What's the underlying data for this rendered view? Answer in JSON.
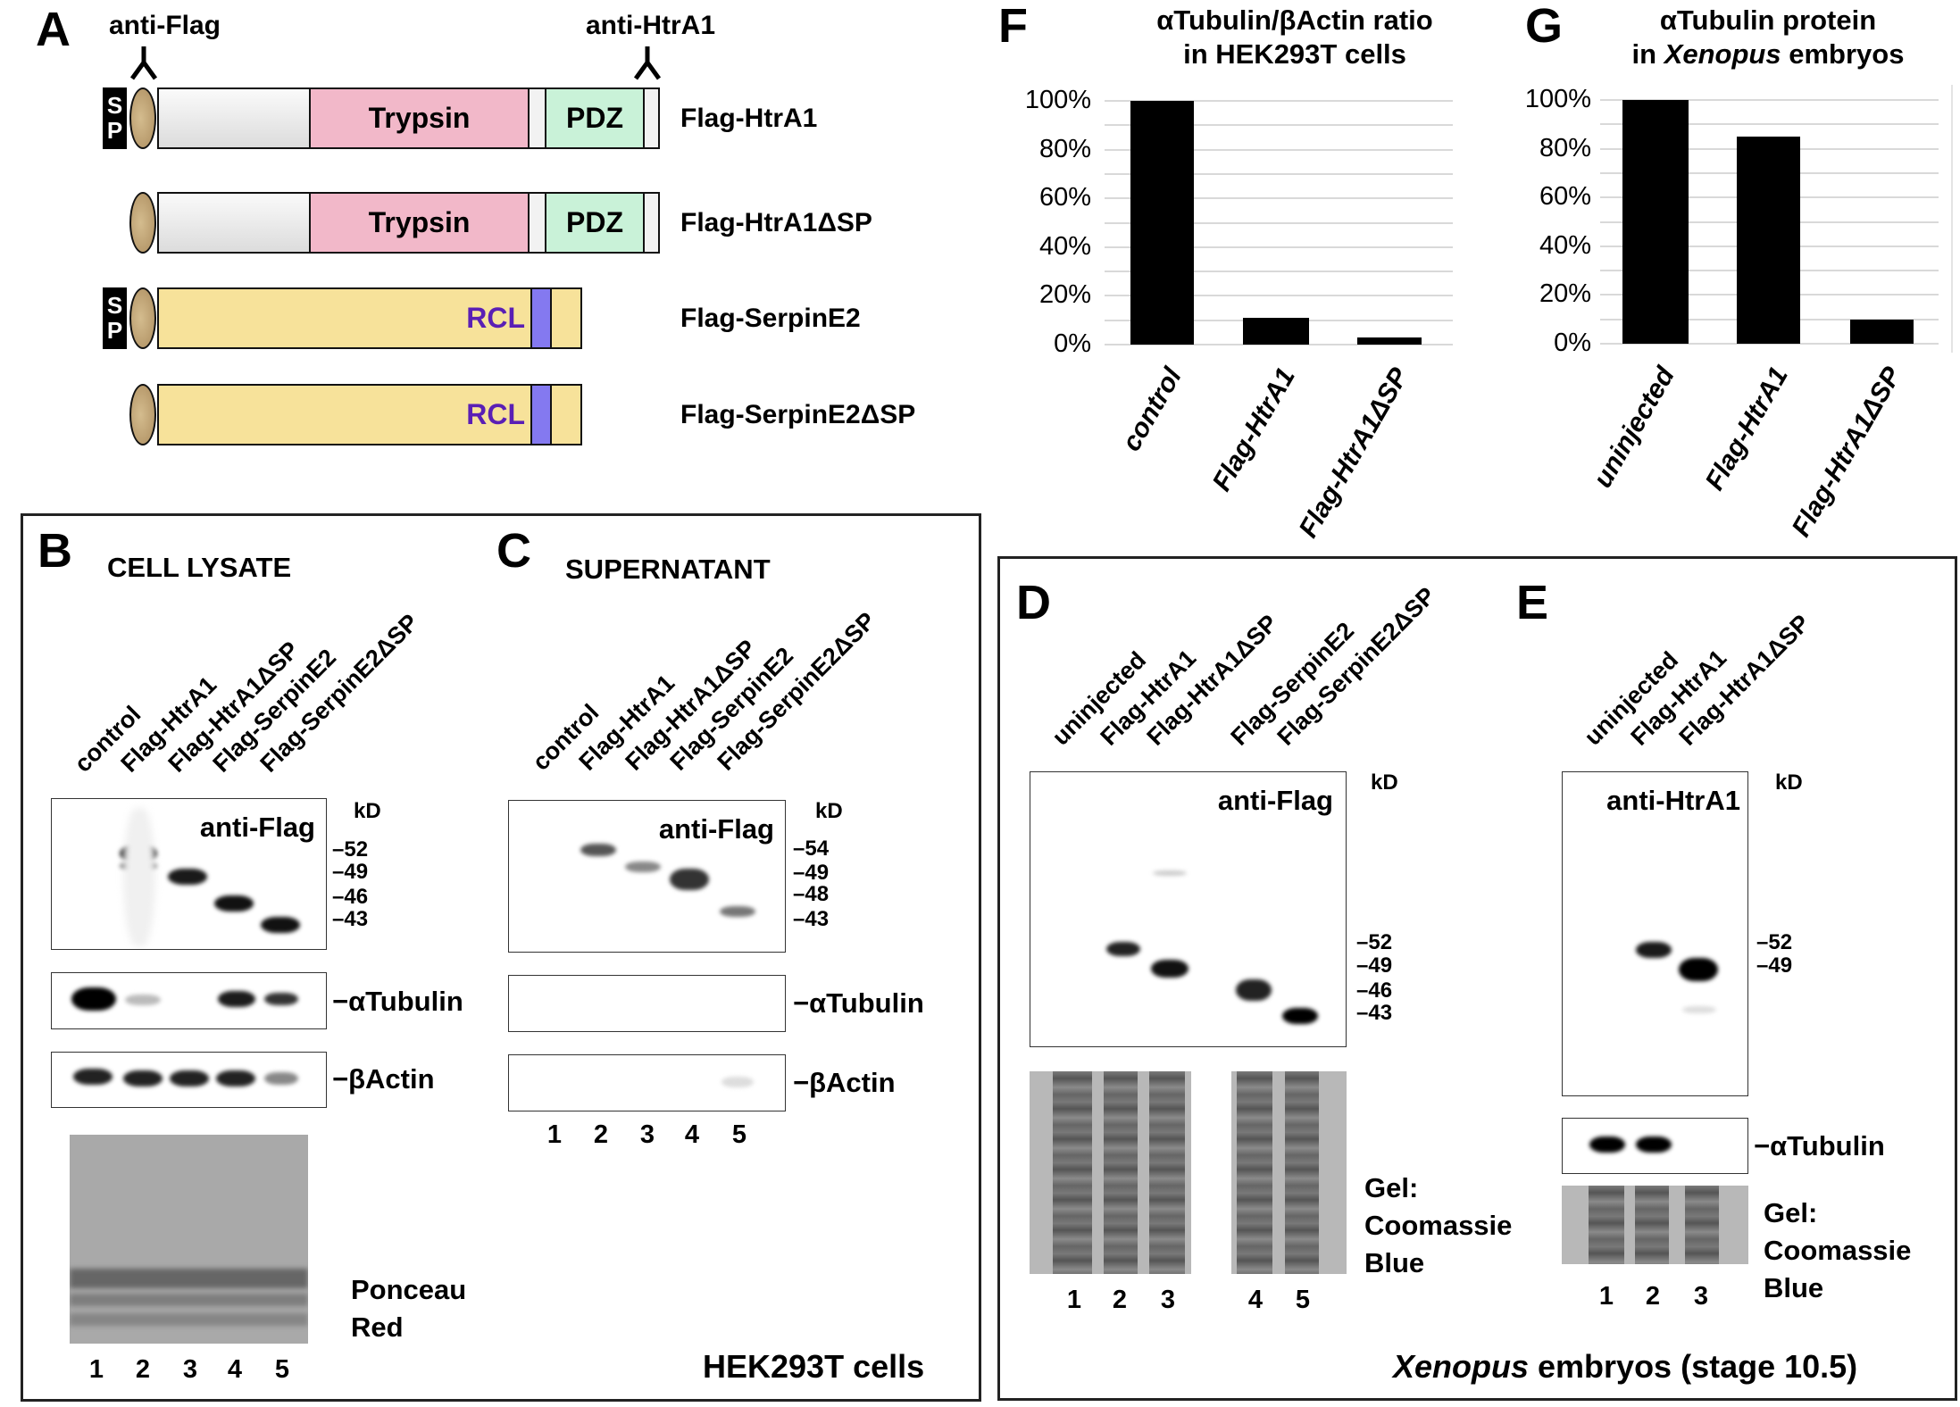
{
  "panel_a": {
    "letter": "A",
    "antibody_labels": {
      "left": "anti-Flag",
      "right": "anti-HtrA1"
    },
    "antibody_icon": "antibody-y-icon",
    "domains": {
      "sp": [
        "S",
        "P"
      ],
      "trypsin": "Trypsin",
      "pdz": "PDZ",
      "rcl": "RCL"
    },
    "constructs": [
      {
        "name": "Flag-HtrA1",
        "has_sp": true,
        "type": "htra1"
      },
      {
        "name": "Flag-HtrA1ΔSP",
        "has_sp": false,
        "type": "htra1"
      },
      {
        "name": "Flag-SerpinE2",
        "has_sp": true,
        "type": "serpin"
      },
      {
        "name": "Flag-SerpinE2ΔSP",
        "has_sp": false,
        "type": "serpin"
      }
    ],
    "colors": {
      "sp": "#000000",
      "flag_tag": "#b99c6e",
      "n_term": "#ececec",
      "trypsin": "#f2b8c9",
      "pdz": "#c9f2d8",
      "serpin": "#f7e29a",
      "rcl": "#8479f0",
      "rcl_text": "#5a1fb5"
    }
  },
  "panel_b": {
    "letter": "B",
    "title": "CELL LYSATE",
    "lanes": [
      "control",
      "Flag-HtrA1",
      "Flag-HtrA1ΔSP",
      "Flag-SerpinE2",
      "Flag-SerpinE2ΔSP"
    ],
    "blot_label": "anti-Flag",
    "kd_label": "kD",
    "markers": [
      "52",
      "49",
      "46",
      "43"
    ],
    "row_labels": [
      "αTubulin",
      "βActin"
    ],
    "stain_label": [
      "Ponceau",
      "Red"
    ],
    "lane_numbers": [
      "1",
      "2",
      "3",
      "4",
      "5"
    ]
  },
  "panel_c": {
    "letter": "C",
    "title": "SUPERNATANT",
    "lanes": [
      "control",
      "Flag-HtrA1",
      "Flag-HtrA1ΔSP",
      "Flag-SerpinE2",
      "Flag-SerpinE2ΔSP"
    ],
    "blot_label": "anti-Flag",
    "kd_label": "kD",
    "markers": [
      "54",
      "49",
      "48",
      "43"
    ],
    "row_labels": [
      "αTubulin",
      "βActin"
    ],
    "lane_numbers": [
      "1",
      "2",
      "3",
      "4",
      "5"
    ]
  },
  "hek_footer": "HEK293T cells",
  "panel_d": {
    "letter": "D",
    "lanes": [
      "uninjected",
      "Flag-HtrA1",
      "Flag-HtrA1ΔSP",
      "Flag-SerpinE2",
      "Flag-SerpinE2ΔSP"
    ],
    "blot_label": "anti-Flag",
    "kd_label": "kD",
    "markers": [
      "52",
      "49",
      "46",
      "43"
    ],
    "stain_label": [
      "Gel:",
      "Coomassie",
      "Blue"
    ],
    "lane_numbers": [
      "1",
      "2",
      "3",
      "4",
      "5"
    ]
  },
  "panel_e": {
    "letter": "E",
    "lanes": [
      "uninjected",
      "Flag-HtrA1",
      "Flag-HtrA1ΔSP"
    ],
    "blot_label": "anti-HtrA1",
    "kd_label": "kD",
    "markers": [
      "52",
      "49"
    ],
    "row_labels": [
      "αTubulin"
    ],
    "stain_label": [
      "Gel:",
      "Coomassie",
      "Blue"
    ],
    "lane_numbers": [
      "1",
      "2",
      "3"
    ]
  },
  "xenopus_footer": {
    "italic": "Xenopus",
    "rest": " embryos (stage 10.5)"
  },
  "chart_data": [
    {
      "panel": "F",
      "type": "bar",
      "title": [
        "αTubulin/βActin ratio",
        "in HEK293T cells"
      ],
      "categories": [
        "control",
        "Flag-HtrA1",
        "Flag-HtrA1ΔSP"
      ],
      "values": [
        100,
        11,
        3
      ],
      "xlabel": "",
      "ylabel": "",
      "ylim": [
        0,
        100
      ],
      "yticks": [
        "0%",
        "20%",
        "40%",
        "60%",
        "80%",
        "100%"
      ],
      "ytick_values": [
        0,
        20,
        40,
        60,
        80,
        100
      ],
      "gridlines_every": 10,
      "grid": true,
      "bar_color": "#000000",
      "legend": "none"
    },
    {
      "panel": "G",
      "type": "bar",
      "title": [
        "αTubulin protein",
        "in Xenopus embryos"
      ],
      "title_italic_word": "Xenopus",
      "categories": [
        "uninjected",
        "Flag-HtrA1",
        "Flag-HtrA1ΔSP"
      ],
      "values": [
        100,
        85,
        10
      ],
      "xlabel": "",
      "ylabel": "",
      "ylim": [
        0,
        100
      ],
      "yticks": [
        "0%",
        "20%",
        "40%",
        "60%",
        "80%",
        "100%"
      ],
      "ytick_values": [
        0,
        20,
        40,
        60,
        80,
        100
      ],
      "gridlines_every": 10,
      "grid": true,
      "bar_color": "#000000",
      "legend": "none"
    }
  ]
}
